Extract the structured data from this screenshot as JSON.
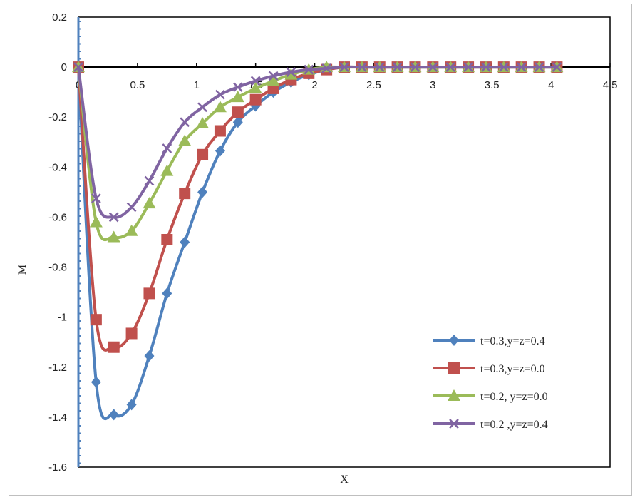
{
  "chart_data": {
    "type": "line",
    "title": "",
    "xlabel": "X",
    "ylabel": "M",
    "xlim": [
      0,
      4.5
    ],
    "ylim": [
      -1.6,
      0.2
    ],
    "xticks": [
      "0",
      "0.5",
      "1",
      "1.5",
      "2",
      "2.5",
      "3",
      "3.5",
      "4",
      "4.5"
    ],
    "yticks": [
      "0.2",
      "0",
      "-0.2",
      "-0.4",
      "-0.6",
      "-0.8",
      "-1",
      "-1.2",
      "-1.4",
      "-1.6"
    ],
    "grid": false,
    "legend_position": "bottom-right",
    "x": [
      0,
      0.15,
      0.3,
      0.45,
      0.6,
      0.75,
      0.9,
      1.05,
      1.2,
      1.35,
      1.5,
      1.65,
      1.8,
      1.95,
      2.1,
      2.25,
      2.4,
      2.55,
      2.7,
      2.85,
      3.0,
      3.15,
      3.3,
      3.45,
      3.6,
      3.75,
      3.9,
      4.05
    ],
    "series": [
      {
        "name": "t=0.3,y=z=0.4",
        "color": "#4f81bd",
        "marker": "diamond",
        "values": [
          0,
          -1.26,
          -1.39,
          -1.35,
          -1.155,
          -0.905,
          -0.7,
          -0.5,
          -0.335,
          -0.22,
          -0.155,
          -0.1,
          -0.06,
          -0.03,
          -0.01,
          0,
          0,
          0,
          0,
          0,
          0,
          0,
          0,
          0,
          0,
          0,
          0,
          0
        ]
      },
      {
        "name": "t=0.3,y=z=0.0",
        "color": "#c0504d",
        "marker": "square",
        "values": [
          0,
          -1.01,
          -1.12,
          -1.065,
          -0.905,
          -0.69,
          -0.505,
          -0.35,
          -0.255,
          -0.18,
          -0.13,
          -0.085,
          -0.05,
          -0.025,
          -0.01,
          0,
          0,
          0,
          0,
          0,
          0,
          0,
          0,
          0,
          0,
          0,
          0,
          0
        ]
      },
      {
        "name": "t=0.2, y=z=0.0",
        "color": "#9bbb59",
        "marker": "triangle",
        "values": [
          0,
          -0.62,
          -0.68,
          -0.655,
          -0.545,
          -0.415,
          -0.295,
          -0.225,
          -0.16,
          -0.12,
          -0.085,
          -0.055,
          -0.03,
          -0.01,
          0,
          0,
          0,
          0,
          0,
          0,
          0,
          0,
          0,
          0,
          0,
          0,
          0,
          0
        ]
      },
      {
        "name": "t=0.2 ,y=z=0.4",
        "color": "#8064a2",
        "marker": "x",
        "values": [
          0,
          -0.525,
          -0.6,
          -0.56,
          -0.455,
          -0.325,
          -0.22,
          -0.16,
          -0.11,
          -0.08,
          -0.055,
          -0.035,
          -0.02,
          -0.01,
          -0.005,
          0,
          0,
          0,
          0,
          0,
          0,
          0,
          0,
          0,
          0,
          0,
          0,
          0
        ]
      }
    ]
  }
}
